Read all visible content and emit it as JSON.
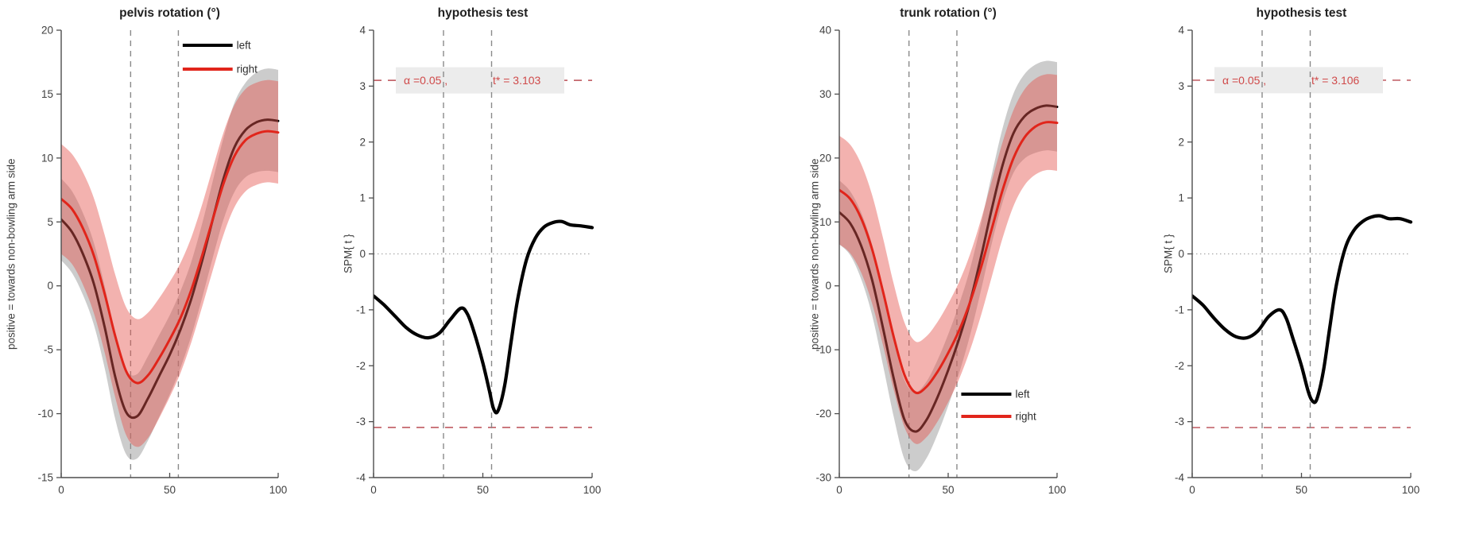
{
  "colors": {
    "axis": "#4d4d4d",
    "tick_label": "#3f3f3f",
    "title": "#212121",
    "vline": "#8a8a8a",
    "zero_line": "#a8a8a8",
    "left_line": "#000000",
    "right_line": "#e1251b",
    "left_band": "#8f8f8f",
    "left_band_opacity": 0.45,
    "right_band": "#e4554d",
    "right_band_opacity": 0.45,
    "spm_curve": "#000000",
    "threshold_line": "#c4666c",
    "threshold_text": "#d04a4a",
    "threshold_box": "#ececec",
    "legend_text": "#2e2e2e"
  },
  "chart_data": [
    {
      "type": "line",
      "id": "pelvis-rotation",
      "title": "pelvis rotation (°)",
      "ylabel": "positive = towards non-bowling arm side",
      "xlim": [
        0,
        100
      ],
      "ylim": [
        -15,
        20
      ],
      "xticks": [
        0,
        50,
        100
      ],
      "yticks": [
        -15,
        -10,
        -5,
        0,
        5,
        10,
        15,
        20
      ],
      "vlines": [
        32,
        54
      ],
      "x": [
        0,
        5,
        10,
        15,
        20,
        25,
        30,
        35,
        40,
        45,
        50,
        55,
        60,
        65,
        70,
        75,
        80,
        85,
        90,
        95,
        100
      ],
      "series": [
        {
          "name": "left",
          "values": [
            5.2,
            4.2,
            2.5,
            0.2,
            -3.2,
            -7.2,
            -9.9,
            -10.2,
            -8.8,
            -7.1,
            -5.4,
            -3.4,
            -1.0,
            2.0,
            5.3,
            8.5,
            10.9,
            12.2,
            12.8,
            13.0,
            12.9
          ],
          "band_halfwidth": [
            3.2,
            3.2,
            3.2,
            3.2,
            3.2,
            3.3,
            3.3,
            3.3,
            3.3,
            3.2,
            3.1,
            3.0,
            2.9,
            2.9,
            3.0,
            3.2,
            3.5,
            3.7,
            3.9,
            4.0,
            4.0
          ]
        },
        {
          "name": "right",
          "values": [
            6.8,
            6.0,
            4.5,
            2.4,
            -0.6,
            -4.0,
            -6.7,
            -7.6,
            -7.0,
            -5.7,
            -4.2,
            -2.5,
            -0.3,
            2.4,
            5.3,
            8.1,
            10.2,
            11.4,
            11.9,
            12.1,
            12.0
          ],
          "band_halfwidth": [
            4.3,
            4.3,
            4.4,
            4.5,
            4.6,
            4.8,
            5.0,
            5.0,
            4.9,
            4.7,
            4.5,
            4.3,
            4.1,
            4.0,
            4.0,
            4.0,
            4.0,
            4.0,
            4.0,
            4.0,
            4.0
          ]
        }
      ],
      "legend": {
        "position": "top-right",
        "entries": [
          {
            "label": "left"
          },
          {
            "label": "right"
          }
        ]
      }
    },
    {
      "type": "line",
      "id": "pelvis-hypothesis-test",
      "title": "hypothesis test",
      "ylabel": "SPM{ t }",
      "xlim": [
        0,
        100
      ],
      "ylim": [
        -4,
        4
      ],
      "xticks": [
        0,
        50,
        100
      ],
      "yticks": [
        -4,
        -3,
        -2,
        -1,
        0,
        1,
        2,
        3,
        4
      ],
      "vlines": [
        32,
        54
      ],
      "threshold": 3.103,
      "threshold_label": {
        "alpha": "α =0.05 ,",
        "t": "t* = 3.103"
      },
      "zero_line": true,
      "x": [
        0,
        5,
        10,
        15,
        20,
        25,
        30,
        35,
        40,
        43,
        46,
        50,
        53,
        55,
        57,
        60,
        63,
        66,
        70,
        74,
        78,
        82,
        86,
        90,
        95,
        100
      ],
      "values": [
        -0.75,
        -0.92,
        -1.12,
        -1.32,
        -1.45,
        -1.5,
        -1.42,
        -1.18,
        -0.97,
        -1.08,
        -1.4,
        -1.95,
        -2.45,
        -2.78,
        -2.8,
        -2.35,
        -1.55,
        -0.8,
        -0.1,
        0.28,
        0.48,
        0.56,
        0.58,
        0.52,
        0.5,
        0.47
      ]
    },
    {
      "type": "line",
      "id": "trunk-rotation",
      "title": "trunk rotation (°)",
      "ylabel": "positive = towards non-bowling arm side",
      "xlim": [
        0,
        100
      ],
      "ylim": [
        -30,
        40
      ],
      "xticks": [
        0,
        50,
        100
      ],
      "yticks": [
        -30,
        -20,
        -10,
        0,
        10,
        20,
        30,
        40
      ],
      "vlines": [
        32,
        54
      ],
      "x": [
        0,
        5,
        10,
        15,
        20,
        25,
        30,
        35,
        40,
        45,
        50,
        55,
        60,
        65,
        70,
        75,
        80,
        85,
        90,
        95,
        100
      ],
      "series": [
        {
          "name": "left",
          "values": [
            11.5,
            9.8,
            6.3,
            1.0,
            -6.5,
            -14.5,
            -21.0,
            -22.8,
            -21.0,
            -17.5,
            -13.2,
            -8.3,
            -2.6,
            4.4,
            12.0,
            18.9,
            23.9,
            26.5,
            27.7,
            28.2,
            28.0
          ],
          "band_halfwidth": [
            5.0,
            5.0,
            5.2,
            5.5,
            5.8,
            6.0,
            6.2,
            6.2,
            6.0,
            5.8,
            5.6,
            5.4,
            5.2,
            5.2,
            5.4,
            5.8,
            6.2,
            6.6,
            6.9,
            7.0,
            7.0
          ]
        },
        {
          "name": "right",
          "values": [
            15.0,
            13.6,
            10.6,
            5.8,
            -0.8,
            -8.0,
            -14.0,
            -16.7,
            -15.8,
            -13.5,
            -10.5,
            -7.0,
            -2.6,
            2.8,
            8.9,
            15.0,
            20.0,
            23.2,
            24.9,
            25.6,
            25.5
          ],
          "band_halfwidth": [
            8.5,
            8.5,
            8.5,
            8.5,
            8.4,
            8.3,
            8.2,
            8.0,
            7.9,
            7.8,
            7.7,
            7.6,
            7.5,
            7.5,
            7.5,
            7.5,
            7.5,
            7.5,
            7.5,
            7.5,
            7.5
          ]
        }
      ],
      "legend": {
        "position": "bottom-right",
        "entries": [
          {
            "label": "left"
          },
          {
            "label": "right"
          }
        ]
      }
    },
    {
      "type": "line",
      "id": "trunk-hypothesis-test",
      "title": "hypothesis test",
      "ylabel": "SPM{ t }",
      "xlim": [
        0,
        100
      ],
      "ylim": [
        -4,
        4
      ],
      "xticks": [
        0,
        50,
        100
      ],
      "yticks": [
        -4,
        -3,
        -2,
        -1,
        0,
        1,
        2,
        3,
        4
      ],
      "vlines": [
        32,
        54
      ],
      "threshold": 3.106,
      "threshold_label": {
        "alpha": "α =0.05 ,",
        "t": "t* = 3.106"
      },
      "zero_line": true,
      "x": [
        0,
        5,
        10,
        15,
        20,
        25,
        30,
        35,
        40,
        43,
        46,
        50,
        53,
        55,
        57,
        60,
        63,
        66,
        70,
        74,
        78,
        82,
        86,
        90,
        95,
        100
      ],
      "values": [
        -0.75,
        -0.92,
        -1.15,
        -1.35,
        -1.48,
        -1.5,
        -1.38,
        -1.12,
        -1.0,
        -1.15,
        -1.5,
        -2.0,
        -2.45,
        -2.63,
        -2.6,
        -2.1,
        -1.3,
        -0.55,
        0.1,
        0.42,
        0.58,
        0.66,
        0.68,
        0.63,
        0.63,
        0.57
      ]
    }
  ]
}
